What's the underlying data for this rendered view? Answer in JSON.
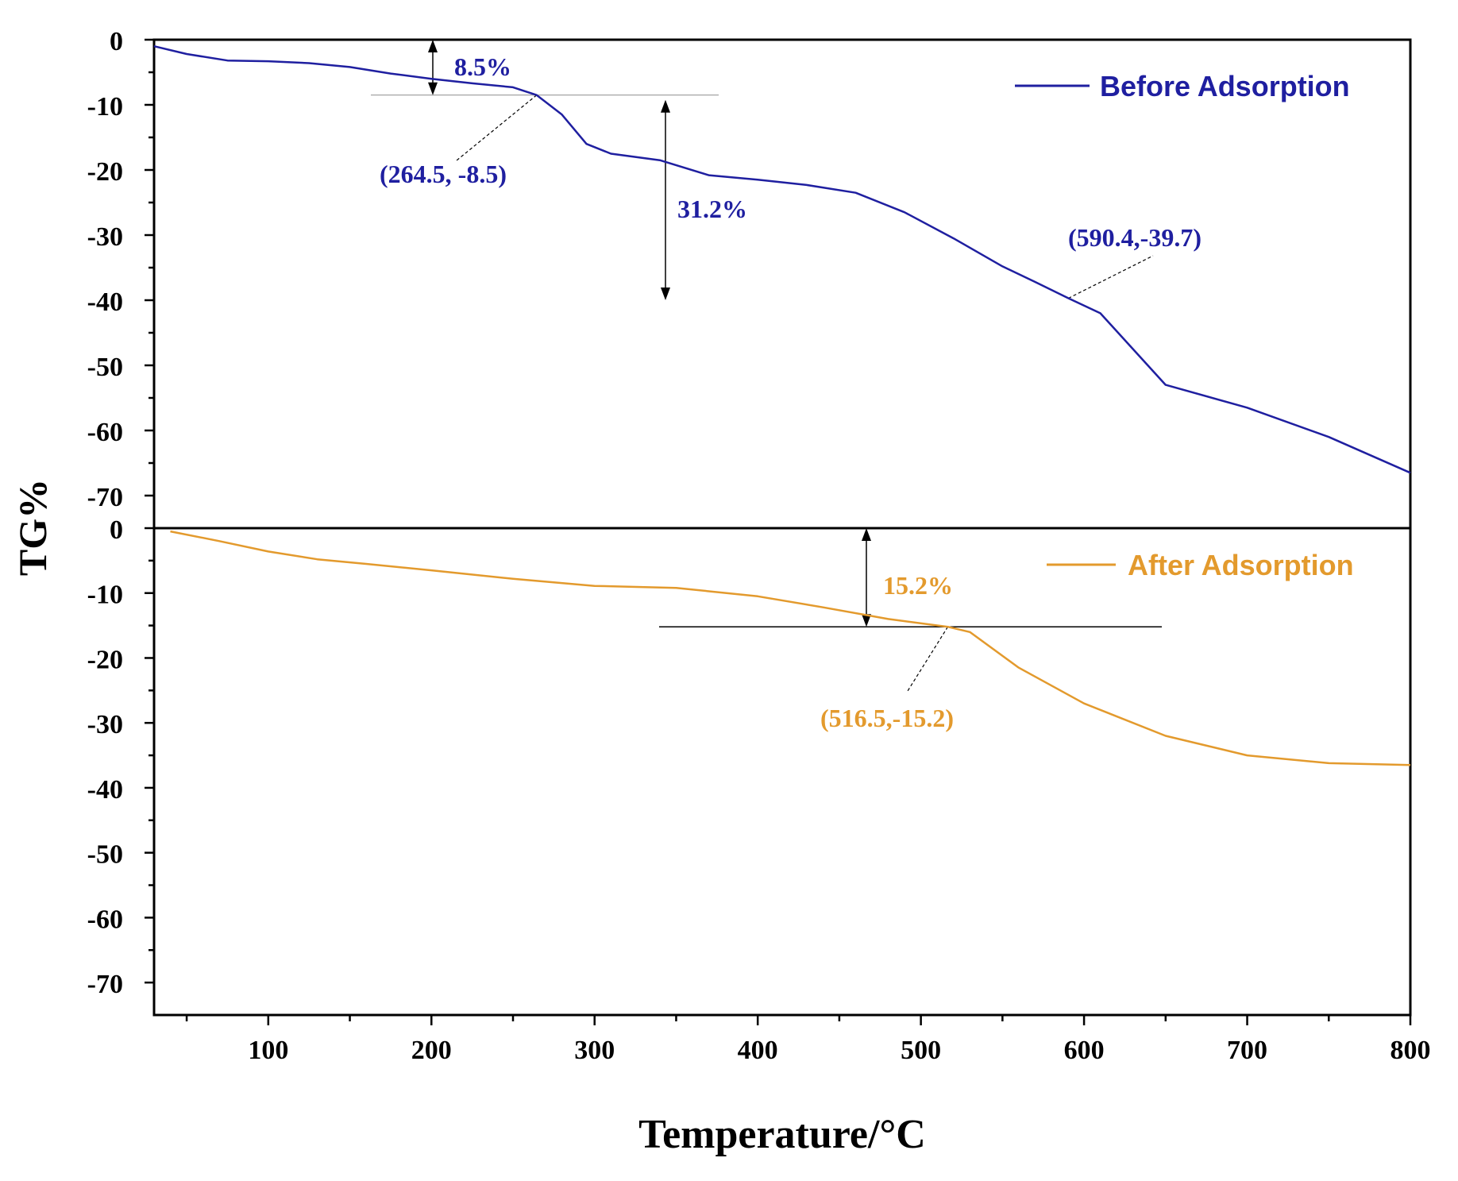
{
  "chart_data": {
    "type": "line",
    "ylabel": "TG%",
    "xlabel": "Temperature/°C",
    "x_range": [
      30,
      800
    ],
    "x_ticks": [
      100,
      200,
      300,
      400,
      500,
      600,
      700,
      800
    ],
    "y_ticks": [
      0,
      -10,
      -20,
      -30,
      -40,
      -50,
      -60,
      -70
    ],
    "panels": [
      {
        "ylim": [
          -75,
          0
        ],
        "series": {
          "name": "Before Adsorption",
          "color": "#1f1fa0",
          "x": [
            30,
            50,
            75,
            100,
            125,
            150,
            175,
            200,
            225,
            250,
            264.5,
            280,
            295,
            310,
            340,
            370,
            400,
            430,
            460,
            490,
            520,
            550,
            570,
            590.4,
            610,
            630,
            650,
            700,
            750,
            800
          ],
          "y": [
            -1,
            -2.2,
            -3.2,
            -3.3,
            -3.6,
            -4.2,
            -5.2,
            -6.0,
            -6.7,
            -7.3,
            -8.5,
            -11.5,
            -16,
            -17.5,
            -18.5,
            -20.8,
            -21.5,
            -22.3,
            -23.5,
            -26.5,
            -30.5,
            -34.8,
            -37.2,
            -39.7,
            -42,
            -47.5,
            -53,
            -56.5,
            -61,
            -66.5
          ]
        },
        "annotations": [
          {
            "text": "8.5%"
          },
          {
            "text": "(264.5, -8.5)"
          },
          {
            "text": "31.2%"
          },
          {
            "text": "(590.4,-39.7)"
          }
        ]
      },
      {
        "ylim": [
          -75,
          0
        ],
        "series": {
          "name": "After Adsorption",
          "color": "#e39a2d",
          "x": [
            40,
            70,
            100,
            130,
            160,
            200,
            250,
            300,
            350,
            400,
            440,
            480,
            516.5,
            530,
            560,
            600,
            650,
            700,
            750,
            800
          ],
          "y": [
            -0.5,
            -2,
            -3.6,
            -4.8,
            -5.5,
            -6.5,
            -7.8,
            -8.9,
            -9.2,
            -10.5,
            -12.2,
            -14,
            -15.2,
            -16,
            -21.5,
            -27,
            -32,
            -35,
            -36.2,
            -36.5
          ]
        },
        "annotations": [
          {
            "text": "15.2%"
          },
          {
            "text": "(516.5,-15.2)"
          }
        ]
      }
    ]
  }
}
